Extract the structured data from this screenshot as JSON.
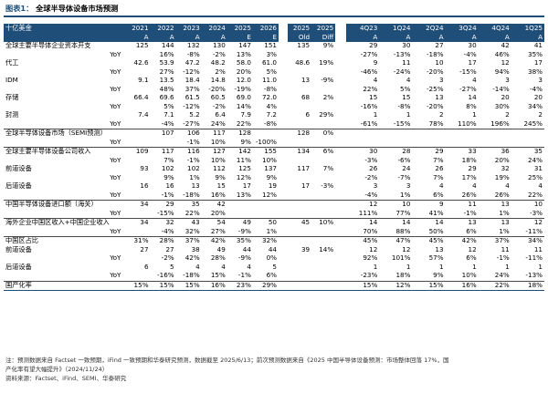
{
  "title": {
    "prefix": "图表1：",
    "text": "全球半导体设备市场预测"
  },
  "header": {
    "unit": "十亿美金",
    "years": [
      "2021",
      "2022",
      "2023",
      "2024",
      "2025",
      "2026",
      "",
      "2025",
      "2025"
    ],
    "quarters": [
      "4Q23",
      "1Q24",
      "2Q24",
      "3Q24",
      "4Q24",
      "1Q25"
    ],
    "flags": [
      "A",
      "A",
      "A",
      "A",
      "E",
      "E",
      "",
      "Old",
      "Diff"
    ],
    "q_flags": [
      "A",
      "A",
      "A",
      "A",
      "A",
      "A"
    ]
  },
  "rows": [
    {
      "label": "全球主要半导体企业资本开支",
      "vals": [
        "125",
        "144",
        "132",
        "130",
        "147",
        "151",
        "",
        "135",
        "9%"
      ],
      "q": [
        "29",
        "30",
        "27",
        "30",
        "42",
        "41"
      ]
    },
    {
      "label": "YoY",
      "sub": true,
      "vals": [
        "",
        "16%",
        "-8%",
        "-2%",
        "13%",
        "3%",
        "",
        "",
        ""
      ],
      "q": [
        "-27%",
        "-13%",
        "-18%",
        "-4%",
        "46%",
        "35%"
      ]
    },
    {
      "label": "代工",
      "vals": [
        "42.6",
        "53.9",
        "47.2",
        "48.2",
        "58.0",
        "61.0",
        "",
        "48.6",
        "19%"
      ],
      "q": [
        "9",
        "11",
        "10",
        "17",
        "12",
        "17"
      ]
    },
    {
      "label": "YoY",
      "sub": true,
      "vals": [
        "",
        "27%",
        "-12%",
        "2%",
        "20%",
        "5%",
        "",
        "",
        ""
      ],
      "q": [
        "-46%",
        "-24%",
        "-20%",
        "-15%",
        "94%",
        "38%"
      ]
    },
    {
      "label": "IDM",
      "vals": [
        "9.1",
        "13.5",
        "18.4",
        "14.8",
        "12.0",
        "11.0",
        "",
        "13",
        "-9%"
      ],
      "q": [
        "4",
        "4",
        "3",
        "4",
        "3",
        "3"
      ]
    },
    {
      "label": "YoY",
      "sub": true,
      "vals": [
        "",
        "48%",
        "37%",
        "-20%",
        "-19%",
        "-8%",
        "",
        "",
        ""
      ],
      "q": [
        "22%",
        "5%",
        "-25%",
        "-27%",
        "-14%",
        "-4%"
      ]
    },
    {
      "label": "存储",
      "vals": [
        "66.4",
        "69.6",
        "61.5",
        "60.5",
        "69.0",
        "72.0",
        "",
        "68",
        "2%"
      ],
      "q": [
        "15",
        "15",
        "13",
        "14",
        "20",
        "20"
      ]
    },
    {
      "label": "YoY",
      "sub": true,
      "vals": [
        "",
        "5%",
        "-12%",
        "-2%",
        "14%",
        "4%",
        "",
        "",
        ""
      ],
      "q": [
        "-16%",
        "-8%",
        "-20%",
        "8%",
        "30%",
        "34%"
      ]
    },
    {
      "label": "封测",
      "vals": [
        "7.4",
        "7.1",
        "5.2",
        "6.4",
        "7.9",
        "7.2",
        "",
        "6",
        "29%"
      ],
      "q": [
        "1",
        "1",
        "2",
        "1",
        "2",
        "2"
      ]
    },
    {
      "label": "YoY",
      "sub": true,
      "vals": [
        "",
        "-4%",
        "-27%",
        "24%",
        "22%",
        "-8%",
        "",
        "",
        ""
      ],
      "q": [
        "-61%",
        "-15%",
        "78%",
        "110%",
        "196%",
        "245%"
      ]
    },
    {
      "label": "全球半导体设备市场（SEMI预测）",
      "vals": [
        "",
        "107",
        "106",
        "117",
        "128",
        "",
        "",
        "128",
        "0%"
      ],
      "q": [
        "",
        "",
        "",
        "",
        "",
        ""
      ]
    },
    {
      "label": "YoY",
      "sub": true,
      "vals": [
        "",
        "",
        "-1%",
        "10%",
        "9%",
        "-100%",
        "",
        "",
        ""
      ],
      "q": [
        "",
        "",
        "",
        "",
        "",
        ""
      ]
    },
    {
      "label": "全球主要半导体设备公司收入",
      "vals": [
        "109",
        "117",
        "116",
        "127",
        "142",
        "155",
        "",
        "134",
        "6%"
      ],
      "q": [
        "30",
        "28",
        "29",
        "33",
        "36",
        "35"
      ]
    },
    {
      "label": "YoY",
      "sub": true,
      "vals": [
        "",
        "7%",
        "-1%",
        "10%",
        "11%",
        "10%",
        "",
        "",
        ""
      ],
      "q": [
        "-3%",
        "-6%",
        "7%",
        "18%",
        "20%",
        "24%"
      ]
    },
    {
      "label": "前道设备",
      "vals": [
        "93",
        "102",
        "102",
        "112",
        "125",
        "137",
        "",
        "117",
        "7%"
      ],
      "q": [
        "26",
        "24",
        "26",
        "29",
        "32",
        "31"
      ]
    },
    {
      "label": "YoY",
      "sub": true,
      "vals": [
        "",
        "9%",
        "1%",
        "9%",
        "12%",
        "9%",
        "",
        "",
        ""
      ],
      "q": [
        "-2%",
        "-7%",
        "7%",
        "17%",
        "19%",
        "25%"
      ]
    },
    {
      "label": "后道设备",
      "vals": [
        "16",
        "16",
        "13",
        "15",
        "17",
        "19",
        "",
        "17",
        "-3%"
      ],
      "q": [
        "3",
        "3",
        "4",
        "4",
        "4",
        "4"
      ]
    },
    {
      "label": "YoY",
      "sub": true,
      "vals": [
        "",
        "-1%",
        "-18%",
        "16%",
        "13%",
        "12%",
        "",
        "",
        ""
      ],
      "q": [
        "-4%",
        "1%",
        "6%",
        "26%",
        "26%",
        "22%"
      ]
    },
    {
      "label": "中国半导体设备进口额（海关）",
      "vals": [
        "34",
        "29",
        "35",
        "42",
        "",
        "",
        "",
        "",
        ""
      ],
      "q": [
        "12",
        "10",
        "9",
        "11",
        "13",
        "10"
      ]
    },
    {
      "label": "YoY",
      "sub": true,
      "vals": [
        "",
        "-15%",
        "22%",
        "20%",
        "",
        "",
        "",
        "",
        ""
      ],
      "q": [
        "111%",
        "77%",
        "41%",
        "-1%",
        "1%",
        "-3%"
      ]
    },
    {
      "label": "海外企业中国区收入+中国企业收入",
      "vals": [
        "34",
        "32",
        "43",
        "54",
        "49",
        "50",
        "",
        "45",
        "10%"
      ],
      "q": [
        "14",
        "14",
        "14",
        "13",
        "13",
        "12"
      ]
    },
    {
      "label": "YoY",
      "sub": true,
      "vals": [
        "",
        "-4%",
        "32%",
        "27%",
        "-9%",
        "1%",
        "",
        "",
        ""
      ],
      "q": [
        "70%",
        "88%",
        "50%",
        "6%",
        "1%",
        "-11%"
      ]
    },
    {
      "label": "中国区占比",
      "vals": [
        "31%",
        "28%",
        "37%",
        "42%",
        "35%",
        "32%",
        "",
        "",
        ""
      ],
      "q": [
        "45%",
        "47%",
        "45%",
        "42%",
        "37%",
        "34%"
      ]
    },
    {
      "label": "前道设备",
      "vals": [
        "27",
        "27",
        "38",
        "49",
        "44",
        "44",
        "",
        "39",
        "14%"
      ],
      "q": [
        "12",
        "12",
        "13",
        "12",
        "11",
        "11"
      ]
    },
    {
      "label": "YoY",
      "sub": true,
      "vals": [
        "",
        "-2%",
        "42%",
        "28%",
        "-9%",
        "0%",
        "",
        "",
        ""
      ],
      "q": [
        "92%",
        "101%",
        "57%",
        "6%",
        "-1%",
        "-11%"
      ]
    },
    {
      "label": "后道设备",
      "vals": [
        "6",
        "5",
        "4",
        "4",
        "4",
        "5",
        "",
        "",
        ""
      ],
      "q": [
        "1",
        "1",
        "1",
        "1",
        "1",
        "1"
      ]
    },
    {
      "label": "YoY",
      "sub": true,
      "vals": [
        "",
        "-16%",
        "-18%",
        "15%",
        "-1%",
        "6%",
        "",
        "",
        ""
      ],
      "q": [
        "-23%",
        "18%",
        "9%",
        "10%",
        "24%",
        "-13%"
      ]
    },
    {
      "label": "国产化率",
      "vals": [
        "15%",
        "15%",
        "15%",
        "16%",
        "23%",
        "29%",
        "",
        "",
        ""
      ],
      "q": [
        "15%",
        "12%",
        "15%",
        "16%",
        "22%",
        "18%"
      ]
    }
  ],
  "notes": [
    "注：预测数据来自 Factset 一致预期，iFind 一致预期和华泰研究预测，数据截至 2025/6/13；前次预测数据来自《2025 中国半导体设备预测：市场整体回落 17%，国",
    "产化率有望大幅提升》（2024/11/24）",
    "资料来源：Factset、iFind、SEMI、华泰研究"
  ]
}
